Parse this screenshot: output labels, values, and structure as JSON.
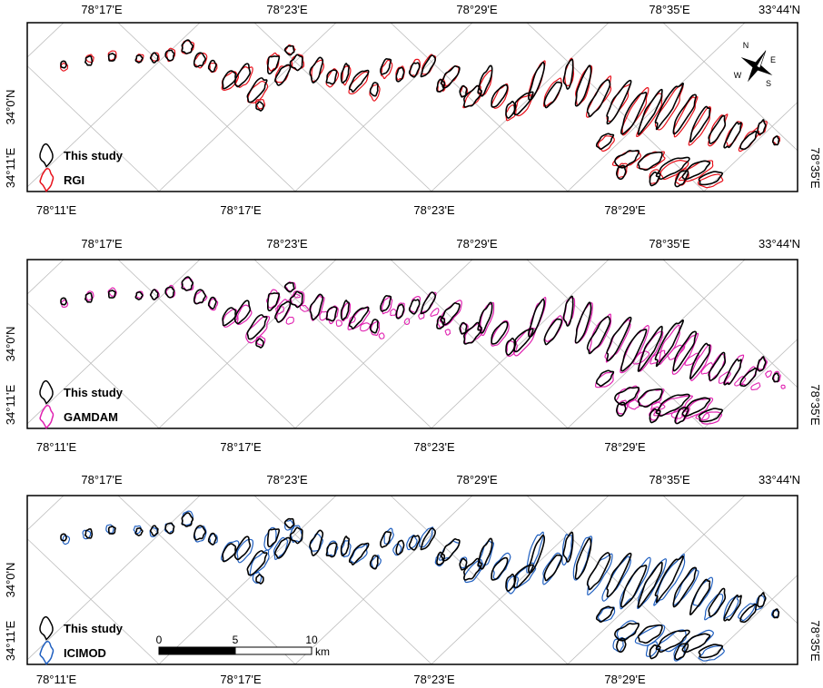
{
  "panels": [
    {
      "id": "rgi",
      "top_ticks": [
        "78°17'E",
        "78°23'E",
        "78°29'E",
        "78°35'E",
        "33°44'N"
      ],
      "bottom_ticks": [
        "78°11'E",
        "78°17'E",
        "78°23'E",
        "78°29'E"
      ],
      "left_ticks": [
        "34°0'N",
        "34°11'E"
      ],
      "right_ticks": [
        "78°35'E"
      ],
      "legend": [
        {
          "label": "This study",
          "color": "#000000"
        },
        {
          "label": "RGI",
          "color": "#e8101a"
        }
      ],
      "has_compass": true,
      "has_scale": false
    },
    {
      "id": "gamdam",
      "top_ticks": [
        "78°17'E",
        "78°23'E",
        "78°29'E",
        "78°35'E",
        "33°44'N"
      ],
      "bottom_ticks": [
        "78°11'E",
        "78°17'E",
        "78°23'E",
        "78°29'E"
      ],
      "left_ticks": [
        "34°0'N",
        "34°11'E"
      ],
      "right_ticks": [
        "78°35'E"
      ],
      "legend": [
        {
          "label": "This study",
          "color": "#000000"
        },
        {
          "label": "GAMDAM",
          "color": "#e020b0"
        }
      ],
      "has_compass": false,
      "has_scale": false
    },
    {
      "id": "icimod",
      "top_ticks": [
        "78°17'E",
        "78°23'E",
        "78°29'E",
        "78°35'E",
        "33°44'N"
      ],
      "bottom_ticks": [
        "78°11'E",
        "78°17'E",
        "78°23'E",
        "78°29'E"
      ],
      "left_ticks": [
        "34°0'N",
        "34°11'E"
      ],
      "right_ticks": [
        "78°35'E"
      ],
      "legend": [
        {
          "label": "This study",
          "color": "#000000"
        },
        {
          "label": "ICIMOD",
          "color": "#1f5fc0"
        }
      ],
      "has_compass": false,
      "has_scale": true
    }
  ],
  "compass": {
    "n": "N",
    "e": "E",
    "s": "S",
    "w": "W"
  },
  "scale_bar": {
    "labels": [
      "0",
      "5",
      "10"
    ],
    "unit": "km"
  }
}
